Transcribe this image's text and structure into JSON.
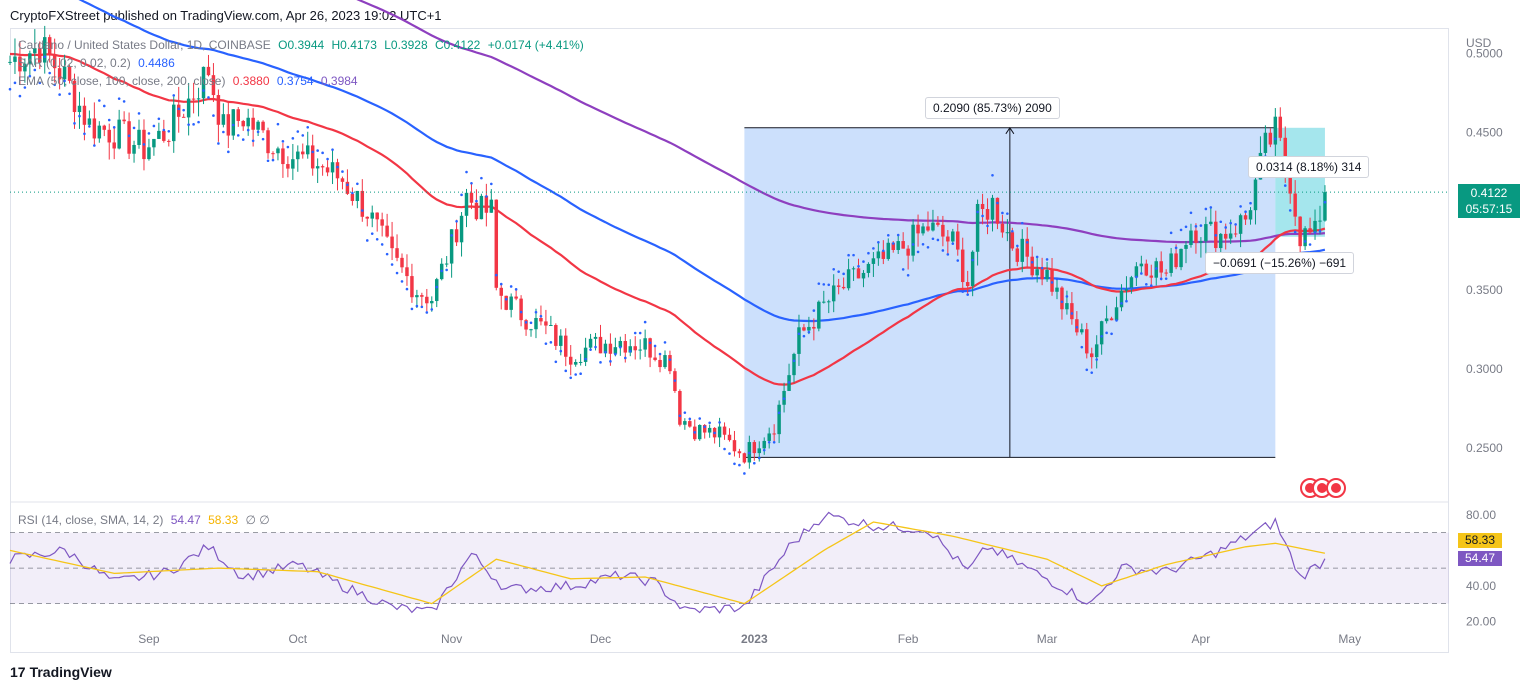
{
  "header": {
    "publisher_line": "CryptoFXStreet published on TradingView.com, Apr 26, 2023 19:02 UTC+1"
  },
  "legend": {
    "symbol": "Cardano / United States Dollar, 1D, COINBASE",
    "o": "O0.3944",
    "h": "H0.4173",
    "l": "L0.3928",
    "c": "C0.4122",
    "chg": "+0.0174 (+4.41%)",
    "sar_label": "SAR (0.02, 0.02, 0.2)",
    "sar_value": "0.4486",
    "ema_label": "EMA (50, close, 100, close, 200, close)",
    "ema50": "0.3880",
    "ema100": "0.3754",
    "ema200": "0.3984",
    "rsi_label": "RSI (14, close, SMA, 14, 2)",
    "rsi_value": "54.47",
    "rsi_sma": "58.33",
    "rsi_extra": "∅ ∅"
  },
  "price_tag": {
    "price": "0.4122",
    "countdown": "05:57:15"
  },
  "measurements": {
    "big": "0.2090 (85.73%) 2090",
    "small_up": "0.0314 (8.18%) 314",
    "small_down": "−0.0691 (−15.26%) −691"
  },
  "footer": {
    "brand": "TradingView",
    "logo": "17"
  },
  "colors": {
    "up": "#089981",
    "down": "#f23645",
    "ema50": "#f23645",
    "ema100": "#2962ff",
    "ema200": "#8e3fbf",
    "sar": "#2962ff",
    "rsi": "#7e57c2",
    "rsi_sma": "#f5c518",
    "range_fill": "#bbd6fb"
  },
  "chart_data": [
    {
      "type": "candlestick",
      "title": "Cardano / United States Dollar, 1D, COINBASE",
      "currency": "USD",
      "y_ticks": [
        0.25,
        0.3,
        0.35,
        0.4,
        0.45,
        0.5
      ],
      "y_tick_labels": [
        "0.2500",
        "0.3000",
        "0.3500",
        "",
        "0.4500",
        "0.5000"
      ],
      "ylim": [
        0.217,
        0.515
      ],
      "x_labels": [
        "Sep",
        "Oct",
        "Nov",
        "Dec",
        "2023",
        "Feb",
        "Mar",
        "Apr",
        "May"
      ],
      "x_label_dates": [
        "2022-09-01",
        "2022-10-01",
        "2022-11-01",
        "2022-12-01",
        "2023-01-01",
        "2023-02-01",
        "2023-03-01",
        "2023-04-01",
        "2023-05-01"
      ],
      "x_range": [
        "2022-08-04",
        "2023-05-21"
      ],
      "close_path": [
        [
          "2022-08-04",
          0.495
        ],
        [
          "2022-08-10",
          0.505
        ],
        [
          "2022-08-15",
          0.485
        ],
        [
          "2022-08-20",
          0.455
        ],
        [
          "2022-08-25",
          0.45
        ],
        [
          "2022-08-31",
          0.44
        ],
        [
          "2022-09-05",
          0.452
        ],
        [
          "2022-09-10",
          0.475
        ],
        [
          "2022-09-13",
          0.49
        ],
        [
          "2022-09-16",
          0.452
        ],
        [
          "2022-09-20",
          0.46
        ],
        [
          "2022-09-25",
          0.445
        ],
        [
          "2022-09-30",
          0.435
        ],
        [
          "2022-10-05",
          0.43
        ],
        [
          "2022-10-10",
          0.42
        ],
        [
          "2022-10-15",
          0.4
        ],
        [
          "2022-10-20",
          0.37
        ],
        [
          "2022-10-25",
          0.35
        ],
        [
          "2022-10-28",
          0.345
        ],
        [
          "2022-11-01",
          0.38
        ],
        [
          "2022-11-04",
          0.41
        ],
        [
          "2022-11-07",
          0.4
        ],
        [
          "2022-11-09",
          0.4
        ],
        [
          "2022-11-10",
          0.35
        ],
        [
          "2022-11-15",
          0.335
        ],
        [
          "2022-11-20",
          0.325
        ],
        [
          "2022-11-25",
          0.31
        ],
        [
          "2022-11-30",
          0.315
        ],
        [
          "2022-12-05",
          0.318
        ],
        [
          "2022-12-10",
          0.315
        ],
        [
          "2022-12-15",
          0.305
        ],
        [
          "2022-12-17",
          0.27
        ],
        [
          "2022-12-20",
          0.262
        ],
        [
          "2022-12-25",
          0.258
        ],
        [
          "2022-12-30",
          0.246
        ],
        [
          "2023-01-01",
          0.252
        ],
        [
          "2023-01-05",
          0.265
        ],
        [
          "2023-01-10",
          0.32
        ],
        [
          "2023-01-15",
          0.34
        ],
        [
          "2023-01-20",
          0.355
        ],
        [
          "2023-01-25",
          0.365
        ],
        [
          "2023-01-30",
          0.375
        ],
        [
          "2023-02-05",
          0.39
        ],
        [
          "2023-02-10",
          0.38
        ],
        [
          "2023-02-13",
          0.355
        ],
        [
          "2023-02-15",
          0.395
        ],
        [
          "2023-02-18",
          0.405
        ],
        [
          "2023-02-22",
          0.38
        ],
        [
          "2023-02-26",
          0.368
        ],
        [
          "2023-03-01",
          0.36
        ],
        [
          "2023-03-05",
          0.335
        ],
        [
          "2023-03-10",
          0.31
        ],
        [
          "2023-03-15",
          0.345
        ],
        [
          "2023-03-20",
          0.37
        ],
        [
          "2023-03-25",
          0.36
        ],
        [
          "2023-03-30",
          0.39
        ],
        [
          "2023-04-05",
          0.385
        ],
        [
          "2023-04-10",
          0.395
        ],
        [
          "2023-04-14",
          0.44
        ],
        [
          "2023-04-16",
          0.45
        ],
        [
          "2023-04-19",
          0.42
        ],
        [
          "2023-04-21",
          0.385
        ],
        [
          "2023-04-24",
          0.385
        ],
        [
          "2023-04-26",
          0.4122
        ]
      ],
      "last_close": 0.4122,
      "range_box": {
        "from": "2022-12-30",
        "to": "2023-04-16",
        "low": 0.244,
        "high": 0.453
      },
      "small_range_box": {
        "from": "2023-04-16",
        "to": "2023-04-26",
        "low": 0.3839,
        "high": 0.453
      }
    },
    {
      "type": "line",
      "title": "RSI (14, close, SMA, 14, 2)",
      "y_ticks": [
        20,
        40,
        80
      ],
      "ylim": [
        14,
        85
      ],
      "band": [
        30,
        70
      ],
      "midline": 50,
      "series": [
        {
          "name": "RSI",
          "points": [
            [
              "2022-08-04",
              55
            ],
            [
              "2022-08-15",
              60
            ],
            [
              "2022-08-25",
              42
            ],
            [
              "2022-09-05",
              48
            ],
            [
              "2022-09-13",
              62
            ],
            [
              "2022-09-20",
              45
            ],
            [
              "2022-10-01",
              52
            ],
            [
              "2022-10-10",
              40
            ],
            [
              "2022-10-20",
              28
            ],
            [
              "2022-10-28",
              25
            ],
            [
              "2022-11-05",
              58
            ],
            [
              "2022-11-12",
              38
            ],
            [
              "2022-11-25",
              40
            ],
            [
              "2022-12-05",
              46
            ],
            [
              "2022-12-12",
              42
            ],
            [
              "2022-12-18",
              26
            ],
            [
              "2022-12-30",
              28
            ],
            [
              "2023-01-08",
              62
            ],
            [
              "2023-01-15",
              80
            ],
            [
              "2023-01-25",
              74
            ],
            [
              "2023-02-05",
              72
            ],
            [
              "2023-02-13",
              48
            ],
            [
              "2023-02-17",
              62
            ],
            [
              "2023-02-25",
              50
            ],
            [
              "2023-03-10",
              30
            ],
            [
              "2023-03-16",
              50
            ],
            [
              "2023-03-25",
              48
            ],
            [
              "2023-04-05",
              60
            ],
            [
              "2023-04-16",
              76
            ],
            [
              "2023-04-21",
              45
            ],
            [
              "2023-04-26",
              54.47
            ]
          ]
        },
        {
          "name": "RSI-based MA",
          "points": [
            [
              "2022-08-04",
              60
            ],
            [
              "2022-08-25",
              47
            ],
            [
              "2022-09-15",
              50
            ],
            [
              "2022-10-05",
              48
            ],
            [
              "2022-10-28",
              30
            ],
            [
              "2022-11-10",
              55
            ],
            [
              "2022-11-25",
              44
            ],
            [
              "2022-12-10",
              45
            ],
            [
              "2022-12-30",
              30
            ],
            [
              "2023-01-15",
              60
            ],
            [
              "2023-01-25",
              76
            ],
            [
              "2023-02-10",
              68
            ],
            [
              "2023-03-01",
              55
            ],
            [
              "2023-03-12",
              40
            ],
            [
              "2023-03-25",
              52
            ],
            [
              "2023-04-10",
              62
            ],
            [
              "2023-04-16",
              64
            ],
            [
              "2023-04-26",
              58.33
            ]
          ]
        }
      ]
    }
  ]
}
